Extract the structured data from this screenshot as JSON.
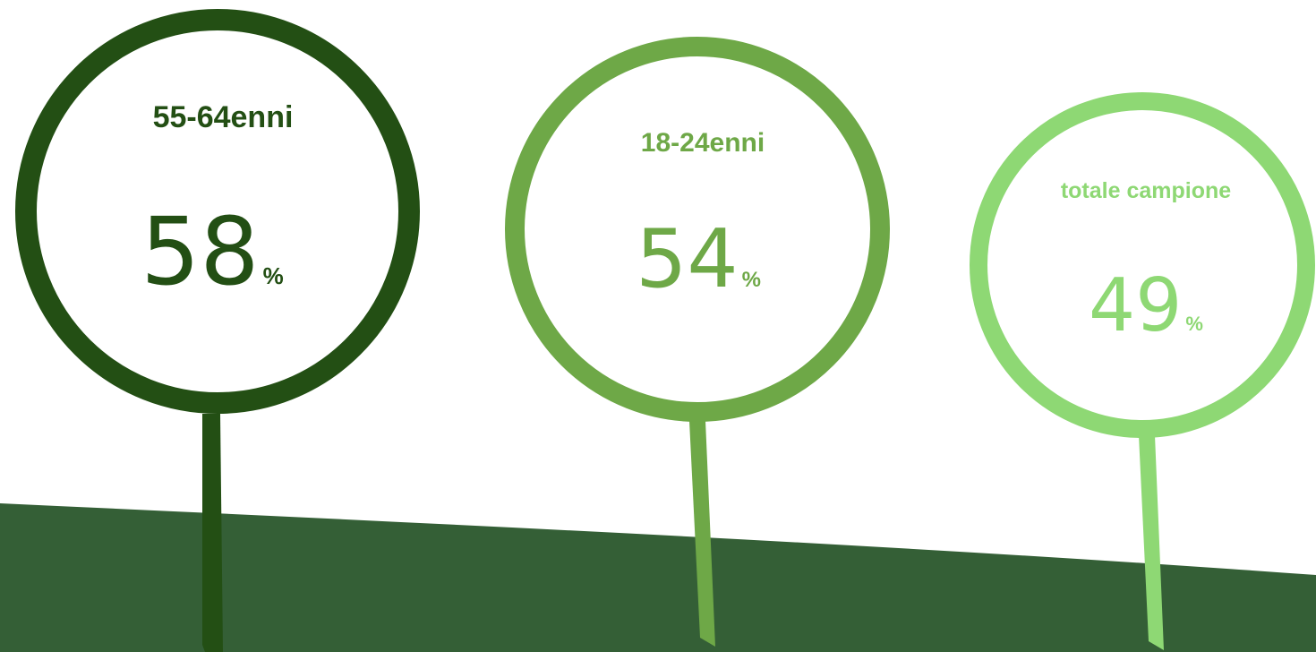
{
  "markers": [
    {
      "group": "55-64enni",
      "value": "58",
      "unit": "%",
      "percent": 58,
      "color": "#234f14"
    },
    {
      "group": "18-24enni",
      "value": "54",
      "unit": "%",
      "percent": 54,
      "color": "#6ea847"
    },
    {
      "group": "totale campione",
      "value": "49",
      "unit": "%",
      "percent": 49,
      "color": "#8ed874"
    }
  ],
  "colors": {
    "hill": "#345f36",
    "background": "#ffffff"
  }
}
